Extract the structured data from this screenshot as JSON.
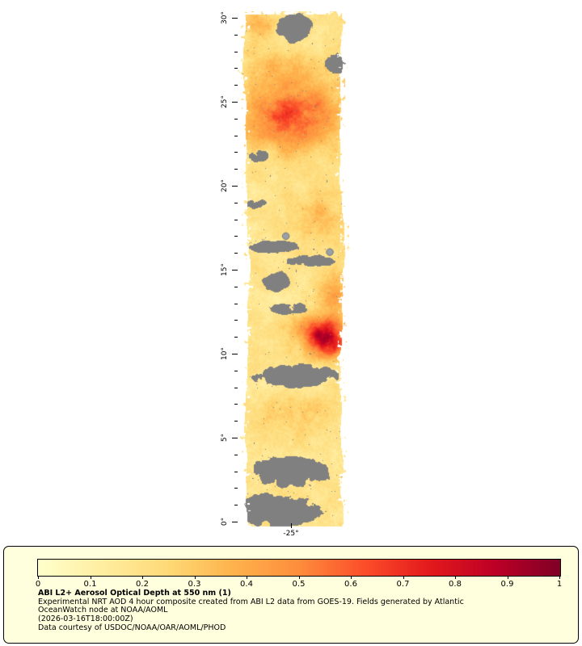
{
  "figure": {
    "background": "#ffffff",
    "no_data_color": "#808080"
  },
  "map": {
    "lat_tick_labels": [
      "30°",
      "25°",
      "20°",
      "15°",
      "10°",
      "5°",
      "0°"
    ],
    "lat_tick_values": [
      30,
      25,
      20,
      15,
      10,
      5,
      0
    ],
    "lon_tick_label": "-25°"
  },
  "colorbar": {
    "tick_labels": [
      "0",
      "0.1",
      "0.2",
      "0.3",
      "0.4",
      "0.5",
      "0.6",
      "0.7",
      "0.8",
      "0.9",
      "1"
    ],
    "range": [
      0,
      1
    ],
    "stops": [
      {
        "v": 0,
        "color": "#ffffcc"
      },
      {
        "v": 0.125,
        "color": "#ffeda0"
      },
      {
        "v": 0.25,
        "color": "#fed976"
      },
      {
        "v": 0.375,
        "color": "#feb24c"
      },
      {
        "v": 0.5,
        "color": "#fd8d3c"
      },
      {
        "v": 0.625,
        "color": "#fc4e2a"
      },
      {
        "v": 0.75,
        "color": "#e31a1c"
      },
      {
        "v": 0.875,
        "color": "#bd0026"
      },
      {
        "v": 1,
        "color": "#800026"
      }
    ]
  },
  "legend_panel": {
    "background": "#fffedd",
    "border_color": "#000000"
  },
  "caption": {
    "title": "ABI L2+ Aerosol Optical Depth at 550 nm (1)",
    "description_line1": "Experimental NRT AOD 4 hour composite created from ABI L2 data from GOES-19. Fields generated by Atlantic",
    "description_line2": "OceanWatch node at NOAA/AOML",
    "timestamp": "(2026-03-16T18:00:00Z)",
    "credit": "Data courtesy of USDOC/NOAA/OAR/AOML/PHOD"
  },
  "chart_data": {
    "type": "heatmap",
    "title": "ABI L2+ Aerosol Optical Depth at 550 nm (1)",
    "variable": "Aerosol Optical Depth at 550 nm",
    "value_range": [
      0,
      1
    ],
    "colorbar_ticks": [
      0,
      0.1,
      0.2,
      0.3,
      0.4,
      0.5,
      0.6,
      0.7,
      0.8,
      0.9,
      1
    ],
    "palette": "YlOrRd",
    "no_data_color": "#808080",
    "y_axis": {
      "label_ticks": [
        "0°",
        "5°",
        "10°",
        "15°",
        "20°",
        "25°",
        "30°"
      ],
      "range_deg": [
        0,
        30
      ]
    },
    "x_axis": {
      "label_ticks": [
        "-25°"
      ]
    },
    "features": [
      {
        "lat": 24.3,
        "fx": 0.5,
        "lat_spread": 2.3,
        "fx_spread": 0.55,
        "aod": 0.3
      },
      {
        "lat": 24.0,
        "fx": 0.45,
        "lat_spread": 1.2,
        "fx_spread": 0.38,
        "aod": 0.18
      },
      {
        "lat": 27.1,
        "fx": 0.4,
        "lat_spread": 0.9,
        "fx_spread": 0.35,
        "aod": 0.12
      },
      {
        "lat": 29.6,
        "fx": 0.12,
        "lat_spread": 0.8,
        "fx_spread": 0.18,
        "aod": 0.2
      },
      {
        "lat": 18.2,
        "fx": 0.8,
        "lat_spread": 1.3,
        "fx_spread": 0.3,
        "aod": 0.15
      },
      {
        "lat": 13.6,
        "fx": 0.9,
        "lat_spread": 1.6,
        "fx_spread": 0.18,
        "aod": 0.18
      },
      {
        "lat": 11.6,
        "fx": 0.68,
        "lat_spread": 0.8,
        "fx_spread": 0.3,
        "aod": 0.25
      },
      {
        "lat": 10.7,
        "fx": 0.84,
        "lat_spread": 0.95,
        "fx_spread": 0.22,
        "aod": 0.62
      },
      {
        "lat": 6.3,
        "fx": 0.5,
        "lat_spread": 1.3,
        "fx_spread": 0.5,
        "aod": 0.1
      }
    ],
    "no_data_regions": [
      {
        "lat": 29.4,
        "fx": 0.5,
        "lat_spread": 1.0,
        "fx_spread": 0.22,
        "density": 1.0
      },
      {
        "lat": 16.35,
        "fx": 0.28,
        "lat_spread": 0.5,
        "fx_spread": 0.35,
        "density": 0.9
      },
      {
        "lat": 15.55,
        "fx": 0.6,
        "lat_spread": 0.5,
        "fx_spread": 0.5,
        "density": 0.7
      },
      {
        "lat": 14.3,
        "fx": 0.28,
        "lat_spread": 0.85,
        "fx_spread": 0.22,
        "density": 0.8
      },
      {
        "lat": 12.7,
        "fx": 0.45,
        "lat_spread": 0.55,
        "fx_spread": 0.3,
        "density": 0.75
      },
      {
        "lat": 8.7,
        "fx": 0.5,
        "lat_spread": 0.8,
        "fx_spread": 0.55,
        "density": 1.0
      },
      {
        "lat": 18.9,
        "fx": 0.1,
        "lat_spread": 0.5,
        "fx_spread": 0.18,
        "density": 0.7
      },
      {
        "lat": 21.8,
        "fx": 0.12,
        "lat_spread": 0.6,
        "fx_spread": 0.15,
        "density": 0.7
      },
      {
        "lat": 27.3,
        "fx": 0.93,
        "lat_spread": 0.9,
        "fx_spread": 0.15,
        "density": 0.8
      },
      {
        "lat": 3.0,
        "fx": 0.45,
        "lat_spread": 1.1,
        "fx_spread": 0.5,
        "density": 1.0
      },
      {
        "lat": 0.7,
        "fx": 0.35,
        "lat_spread": 1.2,
        "fx_spread": 0.5,
        "density": 1.0
      }
    ],
    "artifact_dots": [
      {
        "lat": 17.0,
        "fx": 0.4
      },
      {
        "lat": 16.05,
        "fx": 0.85
      }
    ]
  }
}
